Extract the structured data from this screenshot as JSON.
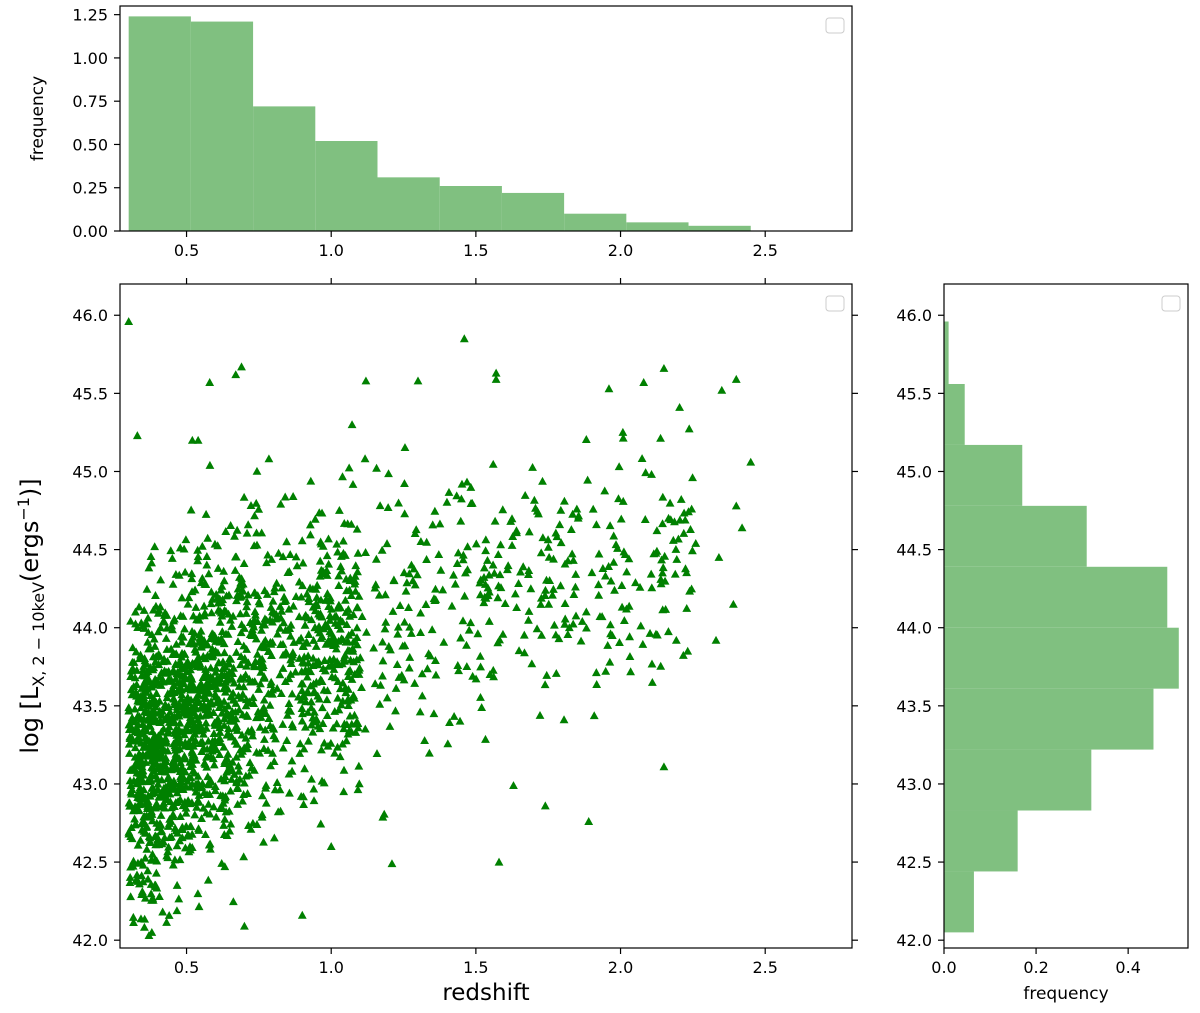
{
  "chart_data": [
    {
      "type": "bar",
      "panel": "top-histogram",
      "title": "",
      "xlabel": "",
      "ylabel": "frequency",
      "xlim": [
        0.27,
        2.8
      ],
      "ylim": [
        0.0,
        1.3
      ],
      "xticks": [
        "0.5",
        "1.0",
        "1.5",
        "2.0",
        "2.5"
      ],
      "yticks": [
        "0.00",
        "0.25",
        "0.50",
        "0.75",
        "1.00",
        "1.25"
      ],
      "bins": [
        {
          "x0": 0.3,
          "x1": 0.515,
          "value": 1.24
        },
        {
          "x0": 0.515,
          "x1": 0.73,
          "value": 1.21
        },
        {
          "x0": 0.73,
          "x1": 0.945,
          "value": 0.72
        },
        {
          "x0": 0.945,
          "x1": 1.16,
          "value": 0.52
        },
        {
          "x0": 1.16,
          "x1": 1.375,
          "value": 0.31
        },
        {
          "x0": 1.375,
          "x1": 1.59,
          "value": 0.26
        },
        {
          "x0": 1.59,
          "x1": 1.805,
          "value": 0.22
        },
        {
          "x0": 1.805,
          "x1": 2.02,
          "value": 0.1
        },
        {
          "x0": 2.02,
          "x1": 2.235,
          "value": 0.05
        },
        {
          "x0": 2.235,
          "x1": 2.45,
          "value": 0.03
        }
      ],
      "color": "#80c080",
      "legend": "top-right (empty)"
    },
    {
      "type": "scatter",
      "panel": "main-scatter",
      "title": "",
      "xlabel": "redshift",
      "ylabel_parts": {
        "prefix": "log [L",
        "subscript": "X, 2 − 10keV",
        "middle": "(ergs",
        "superscript": "−1",
        "suffix": ")]"
      },
      "xlim": [
        0.27,
        2.8
      ],
      "ylim": [
        41.95,
        46.2
      ],
      "xticks": [
        "0.5",
        "1.0",
        "1.5",
        "2.0",
        "2.5"
      ],
      "yticks": [
        "42.0",
        "42.5",
        "43.0",
        "43.5",
        "44.0",
        "44.5",
        "45.0",
        "45.5",
        "46.0"
      ],
      "marker": "triangle",
      "color": "#008000",
      "legend": "top-right (empty)",
      "generator": {
        "n_points": 2100,
        "note": "distribution approximating the plotted cloud"
      },
      "points": [
        [
          0.3,
          45.96
        ],
        [
          1.46,
          45.85
        ],
        [
          0.69,
          45.67
        ],
        [
          0.67,
          45.62
        ],
        [
          1.57,
          45.63
        ],
        [
          2.15,
          45.66
        ],
        [
          2.4,
          45.59
        ],
        [
          2.08,
          45.57
        ],
        [
          0.58,
          45.57
        ],
        [
          1.12,
          45.58
        ],
        [
          1.3,
          45.58
        ],
        [
          1.57,
          45.59
        ],
        [
          1.96,
          45.53
        ],
        [
          2.35,
          45.52
        ],
        [
          0.33,
          45.23
        ],
        [
          0.52,
          45.2
        ],
        [
          0.54,
          45.2
        ],
        [
          2.45,
          45.06
        ],
        [
          2.4,
          44.78
        ],
        [
          2.42,
          44.64
        ],
        [
          2.34,
          44.45
        ],
        [
          2.26,
          44.54
        ],
        [
          2.39,
          44.15
        ],
        [
          2.33,
          43.92
        ],
        [
          2.11,
          43.65
        ],
        [
          2.15,
          43.11
        ],
        [
          1.89,
          42.76
        ],
        [
          1.74,
          42.86
        ],
        [
          1.63,
          42.99
        ],
        [
          1.58,
          42.5
        ],
        [
          0.9,
          42.16
        ],
        [
          0.7,
          42.09
        ],
        [
          0.38,
          42.05
        ],
        [
          0.37,
          42.03
        ],
        [
          1.21,
          42.49
        ],
        [
          1.0,
          42.6
        ]
      ]
    },
    {
      "type": "bar",
      "orientation": "horizontal",
      "panel": "right-histogram",
      "title": "",
      "xlabel": "frequency",
      "ylabel": "",
      "xlim": [
        0.0,
        0.53
      ],
      "ylim": [
        41.95,
        46.2
      ],
      "xticks": [
        "0.0",
        "0.2",
        "0.4"
      ],
      "yticks": [
        "42.0",
        "42.5",
        "43.0",
        "43.5",
        "44.0",
        "44.5",
        "45.0",
        "45.5",
        "46.0"
      ],
      "bins": [
        {
          "y0": 42.05,
          "y1": 42.44,
          "value": 0.065
        },
        {
          "y0": 42.44,
          "y1": 42.83,
          "value": 0.16
        },
        {
          "y0": 42.83,
          "y1": 43.22,
          "value": 0.32
        },
        {
          "y0": 43.22,
          "y1": 43.61,
          "value": 0.455
        },
        {
          "y0": 43.61,
          "y1": 44.0,
          "value": 0.51
        },
        {
          "y0": 44.0,
          "y1": 44.39,
          "value": 0.485
        },
        {
          "y0": 44.39,
          "y1": 44.78,
          "value": 0.31
        },
        {
          "y0": 44.78,
          "y1": 45.17,
          "value": 0.17
        },
        {
          "y0": 45.17,
          "y1": 45.56,
          "value": 0.045
        },
        {
          "y0": 45.56,
          "y1": 45.96,
          "value": 0.01
        }
      ],
      "color": "#80c080",
      "legend": "top-right (empty)"
    }
  ]
}
